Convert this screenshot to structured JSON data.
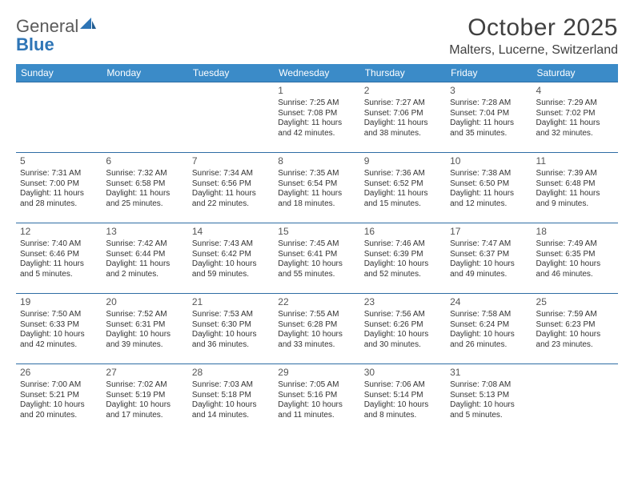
{
  "brand": {
    "part1": "General",
    "part2": "Blue"
  },
  "title": "October 2025",
  "location": "Malters, Lucerne, Switzerland",
  "colors": {
    "header_bg": "#3b8bc8",
    "header_text": "#ffffff",
    "cell_border": "#2e6da4",
    "text": "#333333",
    "logo_gray": "#5a5a5a",
    "logo_blue": "#2e75b6",
    "background": "#ffffff"
  },
  "day_headers": [
    "Sunday",
    "Monday",
    "Tuesday",
    "Wednesday",
    "Thursday",
    "Friday",
    "Saturday"
  ],
  "weeks": [
    [
      null,
      null,
      null,
      {
        "n": "1",
        "sr": "7:25 AM",
        "ss": "7:08 PM",
        "dl": "11 hours and 42 minutes."
      },
      {
        "n": "2",
        "sr": "7:27 AM",
        "ss": "7:06 PM",
        "dl": "11 hours and 38 minutes."
      },
      {
        "n": "3",
        "sr": "7:28 AM",
        "ss": "7:04 PM",
        "dl": "11 hours and 35 minutes."
      },
      {
        "n": "4",
        "sr": "7:29 AM",
        "ss": "7:02 PM",
        "dl": "11 hours and 32 minutes."
      }
    ],
    [
      {
        "n": "5",
        "sr": "7:31 AM",
        "ss": "7:00 PM",
        "dl": "11 hours and 28 minutes."
      },
      {
        "n": "6",
        "sr": "7:32 AM",
        "ss": "6:58 PM",
        "dl": "11 hours and 25 minutes."
      },
      {
        "n": "7",
        "sr": "7:34 AM",
        "ss": "6:56 PM",
        "dl": "11 hours and 22 minutes."
      },
      {
        "n": "8",
        "sr": "7:35 AM",
        "ss": "6:54 PM",
        "dl": "11 hours and 18 minutes."
      },
      {
        "n": "9",
        "sr": "7:36 AM",
        "ss": "6:52 PM",
        "dl": "11 hours and 15 minutes."
      },
      {
        "n": "10",
        "sr": "7:38 AM",
        "ss": "6:50 PM",
        "dl": "11 hours and 12 minutes."
      },
      {
        "n": "11",
        "sr": "7:39 AM",
        "ss": "6:48 PM",
        "dl": "11 hours and 9 minutes."
      }
    ],
    [
      {
        "n": "12",
        "sr": "7:40 AM",
        "ss": "6:46 PM",
        "dl": "11 hours and 5 minutes."
      },
      {
        "n": "13",
        "sr": "7:42 AM",
        "ss": "6:44 PM",
        "dl": "11 hours and 2 minutes."
      },
      {
        "n": "14",
        "sr": "7:43 AM",
        "ss": "6:42 PM",
        "dl": "10 hours and 59 minutes."
      },
      {
        "n": "15",
        "sr": "7:45 AM",
        "ss": "6:41 PM",
        "dl": "10 hours and 55 minutes."
      },
      {
        "n": "16",
        "sr": "7:46 AM",
        "ss": "6:39 PM",
        "dl": "10 hours and 52 minutes."
      },
      {
        "n": "17",
        "sr": "7:47 AM",
        "ss": "6:37 PM",
        "dl": "10 hours and 49 minutes."
      },
      {
        "n": "18",
        "sr": "7:49 AM",
        "ss": "6:35 PM",
        "dl": "10 hours and 46 minutes."
      }
    ],
    [
      {
        "n": "19",
        "sr": "7:50 AM",
        "ss": "6:33 PM",
        "dl": "10 hours and 42 minutes."
      },
      {
        "n": "20",
        "sr": "7:52 AM",
        "ss": "6:31 PM",
        "dl": "10 hours and 39 minutes."
      },
      {
        "n": "21",
        "sr": "7:53 AM",
        "ss": "6:30 PM",
        "dl": "10 hours and 36 minutes."
      },
      {
        "n": "22",
        "sr": "7:55 AM",
        "ss": "6:28 PM",
        "dl": "10 hours and 33 minutes."
      },
      {
        "n": "23",
        "sr": "7:56 AM",
        "ss": "6:26 PM",
        "dl": "10 hours and 30 minutes."
      },
      {
        "n": "24",
        "sr": "7:58 AM",
        "ss": "6:24 PM",
        "dl": "10 hours and 26 minutes."
      },
      {
        "n": "25",
        "sr": "7:59 AM",
        "ss": "6:23 PM",
        "dl": "10 hours and 23 minutes."
      }
    ],
    [
      {
        "n": "26",
        "sr": "7:00 AM",
        "ss": "5:21 PM",
        "dl": "10 hours and 20 minutes."
      },
      {
        "n": "27",
        "sr": "7:02 AM",
        "ss": "5:19 PM",
        "dl": "10 hours and 17 minutes."
      },
      {
        "n": "28",
        "sr": "7:03 AM",
        "ss": "5:18 PM",
        "dl": "10 hours and 14 minutes."
      },
      {
        "n": "29",
        "sr": "7:05 AM",
        "ss": "5:16 PM",
        "dl": "10 hours and 11 minutes."
      },
      {
        "n": "30",
        "sr": "7:06 AM",
        "ss": "5:14 PM",
        "dl": "10 hours and 8 minutes."
      },
      {
        "n": "31",
        "sr": "7:08 AM",
        "ss": "5:13 PM",
        "dl": "10 hours and 5 minutes."
      },
      null
    ]
  ],
  "labels": {
    "sunrise": "Sunrise: ",
    "sunset": "Sunset: ",
    "daylight": "Daylight: "
  }
}
